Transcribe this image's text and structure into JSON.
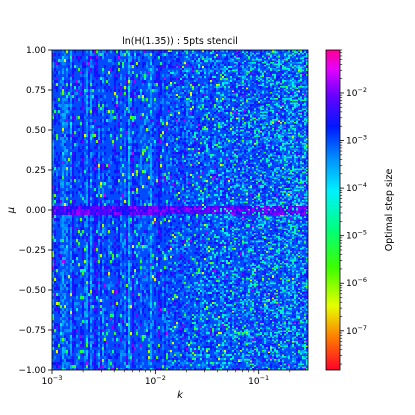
{
  "chart_data": {
    "type": "heatmap",
    "title": "ln(H(1.35)) : 5pts stencil",
    "xlabel": "k",
    "ylabel": "μ",
    "x_scale": "log",
    "xlim": [
      0.001,
      0.3
    ],
    "ylim": [
      -1.0,
      1.0
    ],
    "x_ticks": [
      {
        "value": 0.001,
        "base": "10",
        "exp": "−3"
      },
      {
        "value": 0.01,
        "base": "10",
        "exp": "−2"
      },
      {
        "value": 0.1,
        "base": "10",
        "exp": "−1"
      }
    ],
    "y_ticks": [
      {
        "value": 1.0,
        "label": "1.00"
      },
      {
        "value": 0.75,
        "label": "0.75"
      },
      {
        "value": 0.5,
        "label": "0.50"
      },
      {
        "value": 0.25,
        "label": "0.25"
      },
      {
        "value": 0.0,
        "label": "0.00"
      },
      {
        "value": -0.25,
        "label": "−0.25"
      },
      {
        "value": -0.5,
        "label": "−0.50"
      },
      {
        "value": -0.75,
        "label": "−0.75"
      },
      {
        "value": -1.0,
        "label": "−1.00"
      }
    ],
    "colorbar": {
      "label": "Optimal step size",
      "scale": "log",
      "colormap": "gist_rainbow_r",
      "range": [
        1.5e-08,
        0.08
      ],
      "ticks": [
        {
          "value": 0.01,
          "base": "10",
          "exp": "−2"
        },
        {
          "value": 0.001,
          "base": "10",
          "exp": "−3"
        },
        {
          "value": 0.0001,
          "base": "10",
          "exp": "−4"
        },
        {
          "value": 1e-05,
          "base": "10",
          "exp": "−5"
        },
        {
          "value": 1e-06,
          "base": "10",
          "exp": "−6"
        },
        {
          "value": 1e-07,
          "base": "10",
          "exp": "−7"
        }
      ]
    },
    "dominant_value": 0.001,
    "grid": false
  }
}
